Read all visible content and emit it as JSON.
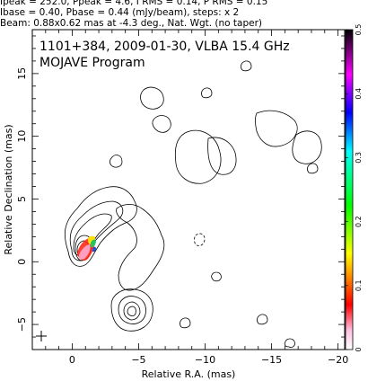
{
  "header": {
    "line1": "Ipeak = 252.0, Ppeak = 4.6, I RMS = 0.14, P RMS = 0.15",
    "line2": "Ibase = 0.40, Pbase = 0.44 (mJy/beam), steps: x 2",
    "line3": "Beam: 0.88x0.62 mas at -4.3 deg., Nat. Wgt. (no taper)"
  },
  "chart_data": {
    "type": "contour",
    "title": "1101+384, 2009-01-30, VLBA 15.4 GHz",
    "subtitle": "MOJAVE Program",
    "xlabel": "Relative R.A. (mas)",
    "ylabel": "Relative Declination (mas)",
    "xlim": [
      3,
      -20.5
    ],
    "ylim": [
      -7,
      18.5
    ],
    "x_ticks": [
      0,
      -5,
      -10,
      -15,
      -20
    ],
    "y_ticks": [
      -5,
      0,
      5,
      10,
      15
    ],
    "x_tick_labels": [
      "0",
      "−5",
      "−10",
      "−15",
      "−20"
    ],
    "y_tick_labels": [
      "−5",
      "0",
      "5",
      "10",
      "15"
    ],
    "colorbar": {
      "ticks": [
        0,
        0.1,
        0.2,
        0.3,
        0.4,
        0.5
      ],
      "tick_labels": [
        "0",
        "0.1",
        "0.2",
        "0.3",
        "0.4",
        "0.5"
      ],
      "colors": [
        "#ffffff",
        "#ff0000",
        "#ffff00",
        "#00ff00",
        "#00ffff",
        "#0000ff",
        "#ff00ff",
        "#000000"
      ]
    },
    "features": {
      "core": {
        "ra": 0.3,
        "dec": 0.1
      },
      "inner_jet": {
        "ra": -1.6,
        "dec": 4.2
      },
      "knot_B": {
        "ra": -3.8,
        "dec": -3.8
      },
      "diffuse_jet_end": {
        "ra": -6.3,
        "dec": 4.8
      },
      "outer_halo": {
        "ra": -11.5,
        "dec": 8.5
      },
      "nw_lobe": {
        "ra": -17.5,
        "dec": 11.5
      }
    },
    "polarization_colored_region": {
      "ra": -0.9,
      "dec": 1.0
    }
  }
}
